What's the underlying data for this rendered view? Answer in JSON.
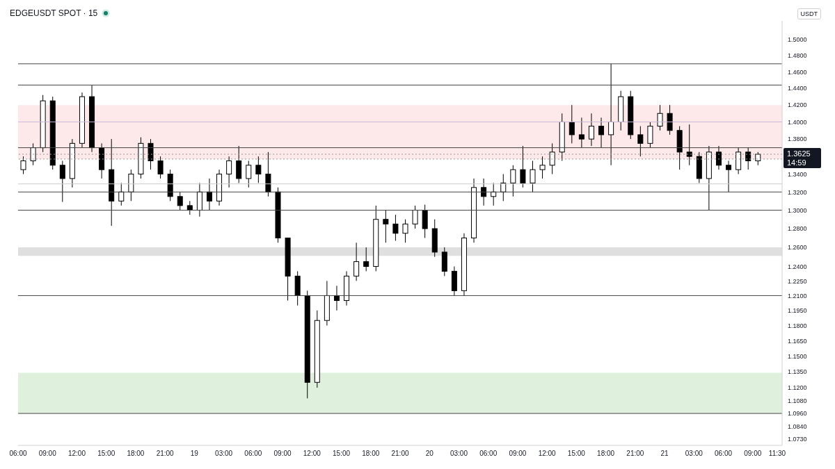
{
  "chart_data": {
    "type": "candlestick",
    "title": "EDGEUSDT SPOT · 15",
    "ylabel": "USDT",
    "annotations": [
      "14:59"
    ],
    "log": true,
    "legend": false,
    "grid": false,
    "x": [
      "--06-18T06:30",
      "--06-18T07:30",
      "--06-18T08:30",
      "--06-18T09:30",
      "--06-18T10:30",
      "--06-18T11:30",
      "--06-18T12:30",
      "--06-18T13:30",
      "--06-18T14:30",
      "--06-18T15:30",
      "--06-18T16:30",
      "--06-18T17:30",
      "--06-18T18:30",
      "--06-18T19:30",
      "--06-18T20:30",
      "--06-18T21:30",
      "--06-18T22:30",
      "--06-18T23:30",
      "--06-19T00:30",
      "--06-19T01:30",
      "--06-19T02:30",
      "--06-19T03:30",
      "--06-19T04:30",
      "--06-19T05:30",
      "--06-19T06:30",
      "--06-19T07:30",
      "--06-19T08:30",
      "--06-19T09:30",
      "--06-19T10:30",
      "--06-19T11:30",
      "--06-19T12:30",
      "--06-19T13:30",
      "--06-19T14:30",
      "--06-19T15:30",
      "--06-19T16:30",
      "--06-19T17:30",
      "--06-19T18:30",
      "--06-19T19:30",
      "--06-19T20:30",
      "--06-19T21:30",
      "--06-19T22:30",
      "--06-19T23:30",
      "--06-20T00:30",
      "--06-20T01:30",
      "--06-20T02:30",
      "--06-20T03:30",
      "--06-20T04:30",
      "--06-20T05:30",
      "--06-20T06:30",
      "--06-20T07:30",
      "--06-20T08:30",
      "--06-20T09:30",
      "--06-20T10:30",
      "--06-20T11:30",
      "--06-20T12:30",
      "--06-20T13:30",
      "--06-20T14:30",
      "--06-20T15:30",
      "--06-20T16:30",
      "--06-20T17:30",
      "--06-20T18:30",
      "--06-20T19:30",
      "--06-20T20:30",
      "--06-20T21:30",
      "--06-20T22:30",
      "--06-20T23:30",
      "--06-21T00:30",
      "--06-21T01:30",
      "--06-21T02:30",
      "--06-21T03:30",
      "--06-21T04:30",
      "--06-21T05:30",
      "--06-21T06:30",
      "--06-21T07:30",
      "--06-21T08:30",
      "--06-21T09:30"
    ],
    "ohlc": [
      [
        1.345,
        1.36,
        1.34,
        1.355
      ],
      [
        1.355,
        1.375,
        1.35,
        1.37
      ],
      [
        1.37,
        1.432,
        1.365,
        1.425
      ],
      [
        1.425,
        1.43,
        1.345,
        1.35
      ],
      [
        1.35,
        1.355,
        1.309,
        1.335
      ],
      [
        1.335,
        1.38,
        1.325,
        1.375
      ],
      [
        1.375,
        1.435,
        1.37,
        1.43
      ],
      [
        1.43,
        1.444,
        1.365,
        1.37
      ],
      [
        1.37,
        1.375,
        1.335,
        1.345
      ],
      [
        1.345,
        1.38,
        1.283,
        1.31
      ],
      [
        1.31,
        1.33,
        1.305,
        1.32
      ],
      [
        1.32,
        1.345,
        1.31,
        1.34
      ],
      [
        1.34,
        1.382,
        1.335,
        1.375
      ],
      [
        1.375,
        1.38,
        1.345,
        1.355
      ],
      [
        1.355,
        1.36,
        1.335,
        1.34
      ],
      [
        1.34,
        1.345,
        1.31,
        1.315
      ],
      [
        1.315,
        1.32,
        1.3,
        1.305
      ],
      [
        1.305,
        1.31,
        1.295,
        1.3
      ],
      [
        1.3,
        1.33,
        1.293,
        1.32
      ],
      [
        1.32,
        1.335,
        1.3,
        1.31
      ],
      [
        1.31,
        1.345,
        1.305,
        1.34
      ],
      [
        1.34,
        1.36,
        1.325,
        1.355
      ],
      [
        1.355,
        1.372,
        1.33,
        1.335
      ],
      [
        1.335,
        1.355,
        1.325,
        1.35
      ],
      [
        1.35,
        1.36,
        1.33,
        1.34
      ],
      [
        1.34,
        1.365,
        1.315,
        1.32
      ],
      [
        1.32,
        1.325,
        1.265,
        1.27
      ],
      [
        1.27,
        1.27,
        1.205,
        1.23
      ],
      [
        1.23,
        1.235,
        1.2,
        1.21
      ],
      [
        1.21,
        1.215,
        1.11,
        1.125
      ],
      [
        1.125,
        1.195,
        1.12,
        1.185
      ],
      [
        1.185,
        1.225,
        1.18,
        1.21
      ],
      [
        1.21,
        1.22,
        1.195,
        1.205
      ],
      [
        1.205,
        1.235,
        1.2,
        1.23
      ],
      [
        1.23,
        1.265,
        1.225,
        1.245
      ],
      [
        1.245,
        1.26,
        1.235,
        1.24
      ],
      [
        1.24,
        1.305,
        1.235,
        1.29
      ],
      [
        1.29,
        1.3,
        1.265,
        1.285
      ],
      [
        1.285,
        1.295,
        1.267,
        1.275
      ],
      [
        1.275,
        1.29,
        1.265,
        1.285
      ],
      [
        1.285,
        1.305,
        1.28,
        1.3
      ],
      [
        1.3,
        1.306,
        1.27,
        1.28
      ],
      [
        1.28,
        1.29,
        1.25,
        1.255
      ],
      [
        1.255,
        1.26,
        1.23,
        1.235
      ],
      [
        1.235,
        1.24,
        1.21,
        1.215
      ],
      [
        1.215,
        1.275,
        1.21,
        1.27
      ],
      [
        1.27,
        1.335,
        1.265,
        1.325
      ],
      [
        1.325,
        1.335,
        1.305,
        1.315
      ],
      [
        1.315,
        1.33,
        1.305,
        1.32
      ],
      [
        1.32,
        1.34,
        1.31,
        1.33
      ],
      [
        1.33,
        1.35,
        1.315,
        1.345
      ],
      [
        1.345,
        1.372,
        1.325,
        1.33
      ],
      [
        1.33,
        1.355,
        1.32,
        1.345
      ],
      [
        1.345,
        1.36,
        1.335,
        1.35
      ],
      [
        1.35,
        1.375,
        1.34,
        1.365
      ],
      [
        1.365,
        1.41,
        1.355,
        1.4
      ],
      [
        1.4,
        1.42,
        1.375,
        1.385
      ],
      [
        1.385,
        1.405,
        1.37,
        1.38
      ],
      [
        1.38,
        1.41,
        1.372,
        1.395
      ],
      [
        1.395,
        1.405,
        1.37,
        1.385
      ],
      [
        1.385,
        1.47,
        1.35,
        1.4
      ],
      [
        1.4,
        1.437,
        1.39,
        1.43
      ],
      [
        1.43,
        1.437,
        1.38,
        1.385
      ],
      [
        1.385,
        1.395,
        1.36,
        1.375
      ],
      [
        1.375,
        1.4,
        1.37,
        1.395
      ],
      [
        1.395,
        1.42,
        1.39,
        1.41
      ],
      [
        1.41,
        1.42,
        1.385,
        1.39
      ],
      [
        1.39,
        1.395,
        1.345,
        1.365
      ],
      [
        1.365,
        1.397,
        1.35,
        1.36
      ],
      [
        1.36,
        1.365,
        1.33,
        1.335
      ],
      [
        1.335,
        1.372,
        1.3,
        1.365
      ],
      [
        1.365,
        1.372,
        1.345,
        1.35
      ],
      [
        1.35,
        1.355,
        1.32,
        1.345
      ],
      [
        1.345,
        1.37,
        1.34,
        1.365
      ],
      [
        1.365,
        1.37,
        1.345,
        1.355
      ],
      [
        1.355,
        1.365,
        1.35,
        1.3625
      ]
    ],
    "colors": [
      "#ffffff",
      "#ffffff",
      "#ffffff",
      "#000000",
      "#000000",
      "#ffffff",
      "#ffffff",
      "#000000",
      "#000000",
      "#000000",
      "#ffffff",
      "#ffffff",
      "#ffffff",
      "#000000",
      "#000000",
      "#000000",
      "#000000",
      "#000000",
      "#ffffff",
      "#000000",
      "#ffffff",
      "#ffffff",
      "#000000",
      "#ffffff",
      "#000000",
      "#000000",
      "#000000",
      "#000000",
      "#000000",
      "#000000",
      "#ffffff",
      "#ffffff",
      "#000000",
      "#ffffff",
      "#ffffff",
      "#000000",
      "#ffffff",
      "#000000",
      "#000000",
      "#ffffff",
      "#ffffff",
      "#000000",
      "#000000",
      "#000000",
      "#000000",
      "#ffffff",
      "#ffffff",
      "#000000",
      "#ffffff",
      "#ffffff",
      "#ffffff",
      "#000000",
      "#ffffff",
      "#ffffff",
      "#ffffff",
      "#ffffff",
      "#000000",
      "#000000",
      "#ffffff",
      "#000000",
      "#ffffff",
      "#ffffff",
      "#000000",
      "#000000",
      "#ffffff",
      "#ffffff",
      "#000000",
      "#000000",
      "#000000",
      "#000000",
      "#ffffff",
      "#000000",
      "#000000",
      "#ffffff",
      "#000000",
      "#ffffff"
    ],
    "xlim": [
      "--06-18T06:00",
      "--06-21T12:00"
    ],
    "xticks": [
      {
        "value": "--06-18T06:00",
        "label": "06:00"
      },
      {
        "value": "--06-18T09:00",
        "label": "09:00"
      },
      {
        "value": "--06-18T12:00",
        "label": "12:00"
      },
      {
        "value": "--06-18T15:00",
        "label": "15:00"
      },
      {
        "value": "--06-18T18:00",
        "label": "18:00"
      },
      {
        "value": "--06-18T21:00",
        "label": "21:00"
      },
      {
        "value": "--06-19T00:00",
        "label": "19"
      },
      {
        "value": "--06-19T03:00",
        "label": "03:00"
      },
      {
        "value": "--06-19T06:00",
        "label": "06:00"
      },
      {
        "value": "--06-19T09:00",
        "label": "09:00"
      },
      {
        "value": "--06-19T12:00",
        "label": "12:00"
      },
      {
        "value": "--06-19T15:00",
        "label": "15:00"
      },
      {
        "value": "--06-19T18:00",
        "label": "18:00"
      },
      {
        "value": "--06-19T21:00",
        "label": "21:00"
      },
      {
        "value": "--06-20T00:00",
        "label": "20"
      },
      {
        "value": "--06-20T03:00",
        "label": "03:00"
      },
      {
        "value": "--06-20T06:00",
        "label": "06:00"
      },
      {
        "value": "--06-20T09:00",
        "label": "09:00"
      },
      {
        "value": "--06-20T12:00",
        "label": "12:00"
      },
      {
        "value": "--06-20T15:00",
        "label": "15:00"
      },
      {
        "value": "--06-20T18:00",
        "label": "18:00"
      },
      {
        "value": "--06-20T21:00",
        "label": "21:00"
      },
      {
        "value": "--06-21T00:00",
        "label": "21"
      },
      {
        "value": "--06-21T03:00",
        "label": "03:00"
      },
      {
        "value": "--06-21T06:00",
        "label": "06:00"
      },
      {
        "value": "--06-21T09:00",
        "label": "09:00"
      },
      {
        "value": "--06-21T11:30",
        "label": "11:30"
      }
    ],
    "ylim": [
      1.067,
      1.524
    ],
    "yticks": [
      {
        "value": 1.5,
        "label": "1.5000"
      },
      {
        "value": 1.48,
        "label": "1.4800"
      },
      {
        "value": 1.46,
        "label": "1.4600"
      },
      {
        "value": 1.44,
        "label": "1.4400"
      },
      {
        "value": 1.42,
        "label": "1.4200"
      },
      {
        "value": 1.4,
        "label": "1.4000"
      },
      {
        "value": 1.38,
        "label": "1.3800"
      },
      {
        "value": 1.34,
        "label": "1.3400"
      },
      {
        "value": 1.32,
        "label": "1.3200"
      },
      {
        "value": 1.3,
        "label": "1.3000"
      },
      {
        "value": 1.28,
        "label": "1.2800"
      },
      {
        "value": 1.26,
        "label": "1.2600"
      },
      {
        "value": 1.24,
        "label": "1.2400"
      },
      {
        "value": 1.225,
        "label": "1.2250"
      },
      {
        "value": 1.21,
        "label": "1.2100"
      },
      {
        "value": 1.195,
        "label": "1.1950"
      },
      {
        "value": 1.18,
        "label": "1.1800"
      },
      {
        "value": 1.165,
        "label": "1.1650"
      },
      {
        "value": 1.15,
        "label": "1.1500"
      },
      {
        "value": 1.135,
        "label": "1.1350"
      },
      {
        "value": 1.12,
        "label": "1.1200"
      },
      {
        "value": 1.108,
        "label": "1.1080"
      },
      {
        "value": 1.096,
        "label": "1.0960"
      },
      {
        "value": 1.084,
        "label": "1.0840"
      },
      {
        "value": 1.073,
        "label": "1.0730"
      }
    ],
    "ref_lines": [
      {
        "axis": "y",
        "value": 1.47,
        "color": "#444444"
      },
      {
        "axis": "y",
        "value": 1.444,
        "color": "#444444"
      },
      {
        "axis": "y",
        "value": 1.37,
        "color": "#444444"
      },
      {
        "axis": "y",
        "value": 1.32,
        "color": "#444444"
      },
      {
        "axis": "y",
        "value": 1.3,
        "color": "#444444"
      },
      {
        "axis": "y",
        "value": 1.21,
        "color": "#444444"
      },
      {
        "axis": "y",
        "value": 1.096,
        "color": "#444444"
      },
      {
        "axis": "y",
        "value": 1.4,
        "color": "#c9b8d8"
      },
      {
        "axis": "y",
        "value": 1.329,
        "color": "#cccccc"
      },
      {
        "axis": "y",
        "value": 1.3625,
        "label": "1.3625",
        "color": "#999999",
        "line_style": "dotted"
      },
      {
        "axis": "y",
        "value": 1.357,
        "color": "#999999",
        "line_style": "dotted"
      }
    ],
    "bands": [
      {
        "axis": "y",
        "from": 1.357,
        "to": 1.42,
        "color": "#fde7e7"
      },
      {
        "axis": "y",
        "from": 1.251,
        "to": 1.26,
        "color": "#dcdcdc"
      },
      {
        "axis": "y",
        "from": 1.096,
        "to": 1.134,
        "color": "#dcefd9"
      }
    ]
  }
}
